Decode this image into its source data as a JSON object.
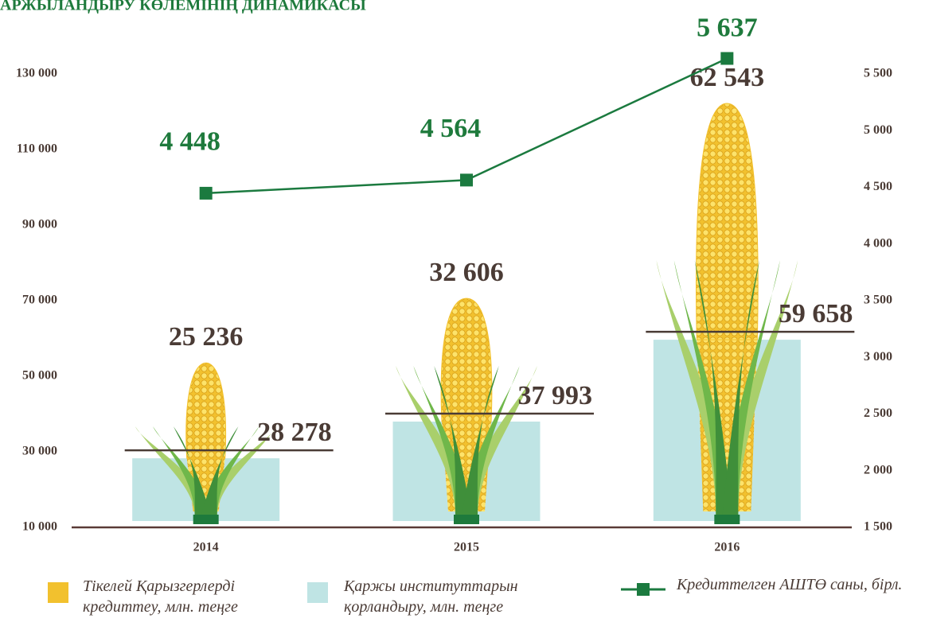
{
  "chart_data": {
    "type": "bar",
    "stacked": true,
    "title": "АРЖЫЛАНДЫРУ КӨЛЕМІНІҢ ДИНАМИКАСЫ",
    "categories": [
      "2014",
      "2015",
      "2016"
    ],
    "series": [
      {
        "name": "Қаржы институттарын қорландыру, млн. теңге",
        "color": "#bfe4e4",
        "values": [
          28278,
          37993,
          59658
        ],
        "value_labels": [
          "28 278",
          "37 993",
          "59 658"
        ]
      },
      {
        "name": "Тікелей Қарызгерлерді кредиттеу, млн. теңге",
        "color": "#f2c12e",
        "values": [
          25236,
          32606,
          62543
        ],
        "value_labels": [
          "25 236",
          "32 606",
          "62 543"
        ]
      },
      {
        "name": "Кредиттелген АШТӨ саны, бірл.",
        "type": "line",
        "axis": "y2",
        "color": "#1b7a3f",
        "values": [
          4448,
          4564,
          5637
        ],
        "value_labels": [
          "4 448",
          "4 564",
          "5 637"
        ]
      }
    ],
    "ylim": [
      10000,
      130000
    ],
    "yticks": [
      {
        "value": 10000,
        "label": "10 000"
      },
      {
        "value": 30000,
        "label": "30 000"
      },
      {
        "value": 50000,
        "label": "50 000"
      },
      {
        "value": 70000,
        "label": "70 000"
      },
      {
        "value": 90000,
        "label": "90 000"
      },
      {
        "value": 110000,
        "label": "110 000"
      },
      {
        "value": 130000,
        "label": "130 000"
      }
    ],
    "y2lim": [
      1500,
      5500
    ],
    "y2ticks": [
      {
        "value": 1500,
        "label": "1 500"
      },
      {
        "value": 2000,
        "label": "2 000"
      },
      {
        "value": 2500,
        "label": "2 500"
      },
      {
        "value": 3000,
        "label": "3 000"
      },
      {
        "value": 3500,
        "label": "3 500"
      },
      {
        "value": 4000,
        "label": "4 000"
      },
      {
        "value": 4500,
        "label": "4 500"
      },
      {
        "value": 5000,
        "label": "5 000"
      },
      {
        "value": 5500,
        "label": "5 500"
      }
    ]
  }
}
